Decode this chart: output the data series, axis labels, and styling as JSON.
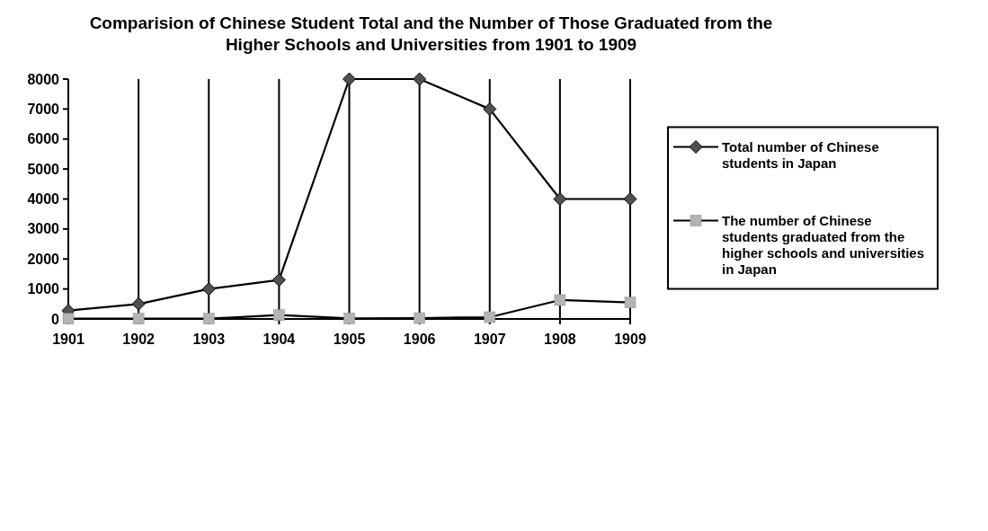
{
  "chart_data": {
    "type": "line",
    "title": "Comparision of Chinese Student Total and the Number of Those Graduated from the Higher Schools and Universities from 1901 to 1909",
    "categories": [
      "1901",
      "1902",
      "1903",
      "1904",
      "1905",
      "1906",
      "1907",
      "1908",
      "1909"
    ],
    "series": [
      {
        "name": "Total number of Chinese students in Japan",
        "color": "#505050",
        "marker": "diamond",
        "values": [
          280,
          500,
          1000,
          1300,
          8000,
          8000,
          7000,
          4000,
          4000
        ]
      },
      {
        "name": "The number of Chinese students graduated from the higher schools and universities in Japan",
        "color": "#b4b4b4",
        "marker": "square",
        "values": [
          10,
          10,
          10,
          130,
          20,
          30,
          60,
          630,
          550
        ]
      }
    ],
    "ylim": [
      0,
      8000
    ],
    "yticks": [
      0,
      1000,
      2000,
      3000,
      4000,
      5000,
      6000,
      7000,
      8000
    ],
    "grid": "x",
    "legend": "right",
    "line_style": "solid"
  }
}
